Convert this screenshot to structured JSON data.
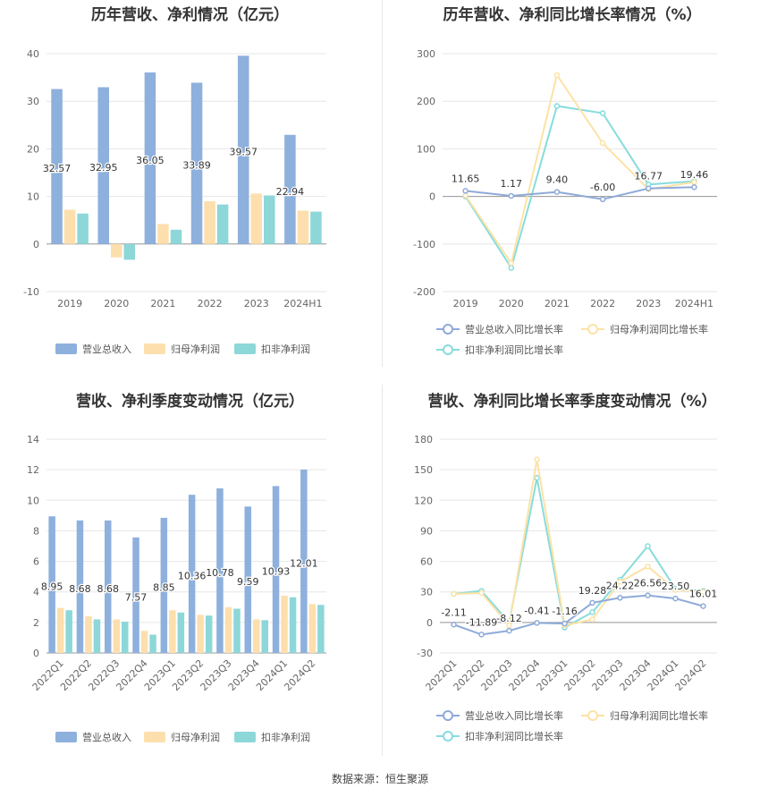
{
  "source_text": "数据来源：恒生聚源",
  "colors": {
    "revenue": "#8eb0dd",
    "net_profit": "#fddfad",
    "deducted": "#8dd7d8",
    "revenue_line": "#8eaad9",
    "net_profit_line": "#fce2a5",
    "deducted_line": "#87dcdc"
  },
  "chart_data": [
    {
      "type": "bar",
      "title": "历年营收、净利情况（亿元）",
      "categories": [
        "2019",
        "2020",
        "2021",
        "2022",
        "2023",
        "2024H1"
      ],
      "ylim": [
        -10,
        40
      ],
      "yticks": [
        "-10",
        "0",
        "10",
        "20",
        "30",
        "40"
      ],
      "series": [
        {
          "name": "营业总收入",
          "values": [
            32.57,
            32.95,
            36.05,
            33.89,
            39.57,
            22.94
          ],
          "labels": [
            "32.57",
            "32.95",
            "36.05",
            "33.89",
            "39.57",
            "22.94"
          ]
        },
        {
          "name": "归母净利润",
          "values": [
            7.2,
            -2.8,
            4.2,
            9.0,
            10.6,
            7.0
          ]
        },
        {
          "name": "扣非净利润",
          "values": [
            6.4,
            -3.3,
            3.0,
            8.3,
            10.2,
            6.8
          ]
        }
      ],
      "legend": "bottom",
      "grid": true
    },
    {
      "type": "line",
      "title": "历年营收、净利同比增长率情况（%）",
      "categories": [
        "2019",
        "2020",
        "2021",
        "2022",
        "2023",
        "2024H1"
      ],
      "ylim": [
        -200,
        300
      ],
      "yticks": [
        "-200",
        "-100",
        "0",
        "100",
        "200",
        "300"
      ],
      "series": [
        {
          "name": "营业总收入同比增长率",
          "values": [
            11.65,
            1.17,
            9.4,
            -6.0,
            16.77,
            19.46
          ],
          "labels": [
            "11.65",
            "1.17",
            "9.40",
            "-6.00",
            "16.77",
            "19.46"
          ]
        },
        {
          "name": "归母净利润同比增长率",
          "values": [
            2,
            -140,
            255,
            112,
            15,
            30
          ]
        },
        {
          "name": "扣非净利润同比增长率",
          "values": [
            0,
            -150,
            190,
            175,
            25,
            32
          ]
        }
      ],
      "legend": "bottom",
      "grid": true
    },
    {
      "type": "bar",
      "title": "营收、净利季度变动情况（亿元）",
      "categories": [
        "2022Q1",
        "2022Q2",
        "2022Q3",
        "2022Q4",
        "2023Q1",
        "2023Q2",
        "2023Q3",
        "2023Q4",
        "2024Q1",
        "2024Q2"
      ],
      "ylim": [
        0,
        14
      ],
      "yticks": [
        "0",
        "2",
        "4",
        "6",
        "8",
        "10",
        "12",
        "14"
      ],
      "series": [
        {
          "name": "营业总收入",
          "values": [
            8.95,
            8.68,
            8.68,
            7.57,
            8.85,
            10.36,
            10.78,
            9.59,
            10.93,
            12.01
          ],
          "labels": [
            "8.95",
            "8.68",
            "8.68",
            "7.57",
            "8.85",
            "10.36",
            "10.78",
            "9.59",
            "10.93",
            "12.01"
          ]
        },
        {
          "name": "归母净利润",
          "values": [
            2.95,
            2.4,
            2.2,
            1.45,
            2.8,
            2.5,
            3.0,
            2.2,
            3.75,
            3.2
          ]
        },
        {
          "name": "扣非净利润",
          "values": [
            2.8,
            2.2,
            2.05,
            1.2,
            2.65,
            2.45,
            2.9,
            2.15,
            3.65,
            3.15
          ]
        }
      ],
      "legend": "bottom",
      "grid": true
    },
    {
      "type": "line",
      "title": "营收、净利同比增长率季度变动情况（%）",
      "categories": [
        "2022Q1",
        "2022Q2",
        "2022Q3",
        "2022Q4",
        "2023Q1",
        "2023Q2",
        "2023Q3",
        "2023Q4",
        "2024Q1",
        "2024Q2"
      ],
      "ylim": [
        -30,
        180
      ],
      "yticks": [
        "-30",
        "0",
        "30",
        "60",
        "90",
        "120",
        "150",
        "180"
      ],
      "series": [
        {
          "name": "营业总收入同比增长率",
          "values": [
            -2.11,
            -11.89,
            -8.12,
            -0.41,
            -1.16,
            19.28,
            24.22,
            26.56,
            23.5,
            16.01
          ],
          "labels": [
            "-2.11",
            "-11.89",
            "-8.12",
            "-0.41",
            "-1.16",
            "19.28",
            "24.22",
            "26.56",
            "23.50",
            "16.01"
          ]
        },
        {
          "name": "归母净利润同比增长率",
          "values": [
            28,
            29,
            -3,
            160,
            -3,
            3,
            40,
            55,
            32,
            30
          ]
        },
        {
          "name": "扣非净利润同比增长率",
          "values": [
            28,
            31,
            0,
            142,
            -5,
            10,
            42,
            75,
            33,
            31
          ]
        }
      ],
      "legend": "bottom",
      "grid": true
    }
  ]
}
